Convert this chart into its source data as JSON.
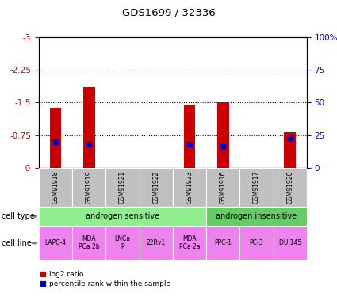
{
  "title": "GDS1699 / 32336",
  "samples": [
    "GSM91918",
    "GSM91919",
    "GSM91921",
    "GSM91922",
    "GSM91923",
    "GSM91916",
    "GSM91917",
    "GSM91920"
  ],
  "log2_ratio": [
    -1.38,
    -1.85,
    0,
    0,
    -1.45,
    -1.5,
    0,
    -0.82
  ],
  "percentile_rank": [
    20,
    18,
    0,
    0,
    18,
    16,
    0,
    23
  ],
  "cell_types": [
    {
      "label": "androgen sensitive",
      "start": 0,
      "end": 5,
      "color": "#90EE90"
    },
    {
      "label": "androgen insensitive",
      "start": 5,
      "end": 8,
      "color": "#66CC66"
    }
  ],
  "cell_lines": [
    "LAPC-4",
    "MDA\nPCa 2b",
    "LNCa\nP",
    "22Rv1",
    "MDA\nPCa 2a",
    "PPC-1",
    "PC-3",
    "DU 145"
  ],
  "cell_line_color": "#EE82EE",
  "sample_bg_color": "#C0C0C0",
  "bar_color": "#CC0000",
  "dot_color": "#0000CC",
  "bar_width": 0.35,
  "legend_red": "log2 ratio",
  "legend_blue": "percentile rank within the sample",
  "left_ylabel_color": "#CC0000",
  "right_ylabel_color": "#0000CC",
  "yticks_left_vals": [
    0,
    -0.75,
    -1.5,
    -2.25,
    -3
  ],
  "yticks_left_labels": [
    "-0",
    "-0.75",
    "-1.5",
    "-2.25",
    "-3"
  ],
  "yticks_right_vals": [
    0,
    25,
    50,
    75,
    100
  ],
  "yticks_right_labels": [
    "0",
    "25",
    "50",
    "75",
    "100%"
  ]
}
